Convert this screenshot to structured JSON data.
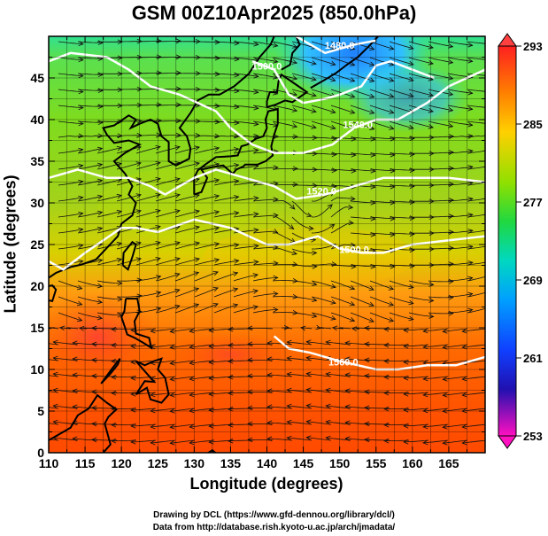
{
  "title": "GSM 00Z10Apr2025 (850.0hPa)",
  "x_axis": {
    "label": "Longitude (degrees)",
    "range": [
      110,
      170
    ],
    "ticks": [
      "110",
      "115",
      "120",
      "125",
      "130",
      "135",
      "140",
      "145",
      "150",
      "155",
      "160",
      "165"
    ]
  },
  "y_axis": {
    "label": "Latitude  (degrees)",
    "range": [
      0,
      50
    ],
    "ticks": [
      "0",
      "5",
      "10",
      "15",
      "20",
      "25",
      "30",
      "35",
      "40",
      "45"
    ]
  },
  "colorbar": {
    "min": 253,
    "max": 293,
    "labels": [
      "293",
      "285",
      "277",
      "269",
      "261",
      "253"
    ],
    "colors": [
      "#ff0000",
      "#ff7a00",
      "#ffd400",
      "#9be000",
      "#1fdc40",
      "#00d9b0",
      "#00a6ff",
      "#2060ff",
      "#0020c0",
      "#a020f0",
      "#ff00c8"
    ]
  },
  "contours": {
    "labels": [
      "1560.0",
      "1500.0",
      "1540.0",
      "1520.0",
      "1500.0",
      "1480.0"
    ],
    "color": "#ffffff"
  },
  "credits": [
    "Drawing by DCL (https://www.gfd-dennou.org/library/dcl/)",
    "Data from http://database.rish.kyoto-u.ac.jp/arch/jmadata/"
  ]
}
